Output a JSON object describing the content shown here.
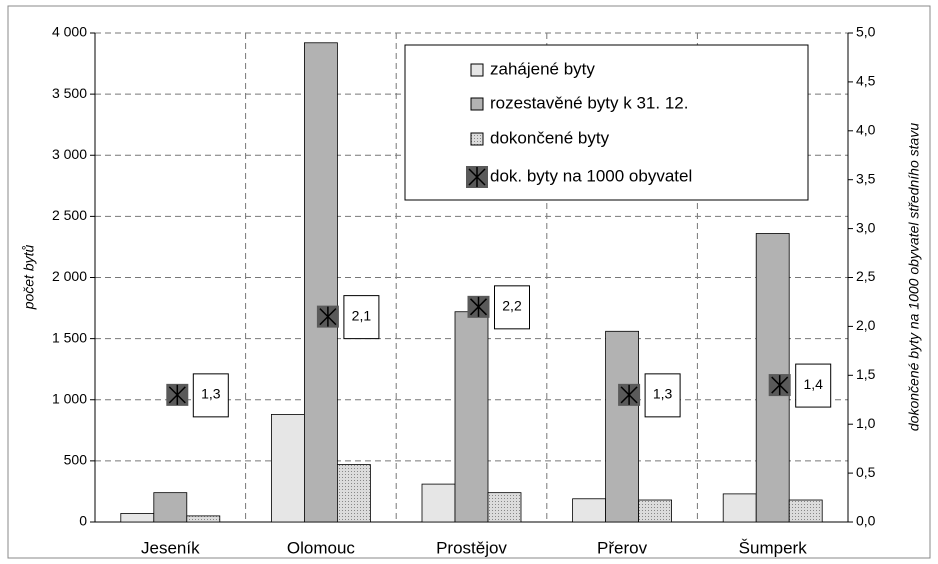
{
  "chart_data": {
    "type": "bar",
    "categories": [
      "Jeseník",
      "Olomouc",
      "Prostějov",
      "Přerov",
      "Šumperk"
    ],
    "series": [
      {
        "name": "zahájené byty",
        "color": "#e6e6e6",
        "values": [
          70,
          880,
          310,
          190,
          230
        ]
      },
      {
        "name": "rozestavěné byty k 31. 12.",
        "color": "#b2b2b2",
        "values": [
          240,
          3920,
          1720,
          1560,
          2360
        ]
      },
      {
        "name": "dokončené byty",
        "color": "#dcdcdc",
        "values": [
          50,
          470,
          240,
          180,
          180
        ]
      },
      {
        "name": "dok. byty na 1000 obyvatel",
        "color": "#5a5a5a",
        "axis": "y2",
        "type": "marker",
        "values": [
          1.3,
          2.1,
          2.2,
          1.3,
          1.4
        ],
        "value_labels": [
          "1,3",
          "2,1",
          "2,2",
          "1,3",
          "1,4"
        ]
      }
    ],
    "ylabel": "počet  bytů",
    "y2label": "dokončené byty na 1000 obyvatel středního stavu",
    "ylim": [
      0,
      4000
    ],
    "yticks": [
      0,
      {
        "value": 500,
        "label": "500"
      },
      {
        "value": 1000,
        "label": "1 000"
      },
      {
        "value": 1500,
        "label": "1 500"
      },
      {
        "value": 2000,
        "label": "2 000"
      },
      {
        "value": 2500,
        "label": "2 500"
      },
      {
        "value": 3000,
        "label": "3 000"
      },
      {
        "value": 3500,
        "label": "3 500"
      },
      {
        "value": 4000,
        "label": "4 000"
      }
    ],
    "y2lim": [
      0,
      5
    ],
    "y2ticks": [
      {
        "value": 0,
        "label": "0,0"
      },
      {
        "value": 0.5,
        "label": "0,5"
      },
      {
        "value": 1,
        "label": "1,0"
      },
      {
        "value": 1.5,
        "label": "1,5"
      },
      {
        "value": 2,
        "label": "2,0"
      },
      {
        "value": 2.5,
        "label": "2,5"
      },
      {
        "value": 3,
        "label": "3,0"
      },
      {
        "value": 3.5,
        "label": "3,5"
      },
      {
        "value": 4,
        "label": "4,0"
      },
      {
        "value": 4.5,
        "label": "4,5"
      },
      {
        "value": 5,
        "label": "5,0"
      }
    ],
    "grid": true,
    "legend": "top-right"
  }
}
